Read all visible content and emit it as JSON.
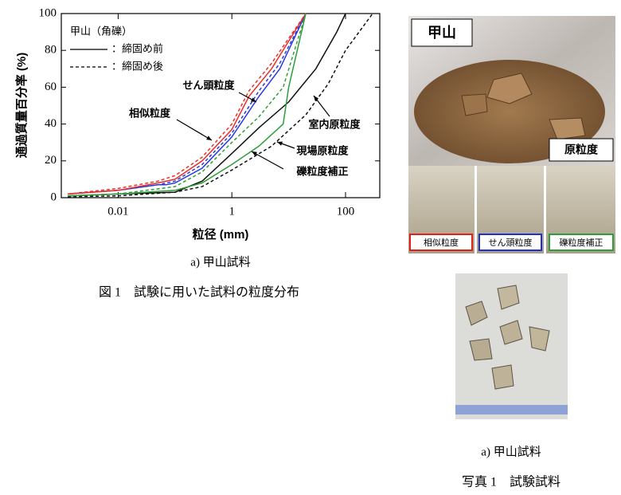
{
  "chart_data": {
    "type": "line",
    "xlabel": "粒径 (mm)",
    "ylabel": "通過質量百分率 (%)",
    "xscale": "log",
    "xlim": [
      0.001,
      400
    ],
    "xticks": [
      0.01,
      1,
      100
    ],
    "ylim": [
      0,
      100
    ],
    "yticks": [
      0,
      20,
      40,
      60,
      80,
      100
    ],
    "legend": {
      "title": "甲山（角礫）",
      "items": [
        {
          "style": "solid",
          "label": "：締固め前"
        },
        {
          "style": "dashed",
          "label": "：締固め後"
        }
      ]
    },
    "series": [
      {
        "name": "せん頭粒度",
        "color": "#2a3adf",
        "style": "solid",
        "x": [
          0.0013,
          0.01,
          0.05,
          0.07,
          0.1,
          0.3,
          1,
          3,
          7,
          20
        ],
        "values": [
          2,
          4,
          7,
          7,
          8,
          16,
          33,
          55,
          70,
          100
        ]
      },
      {
        "color": "#2a3adf",
        "style": "dashed",
        "x": [
          0.0013,
          0.01,
          0.05,
          0.1,
          0.3,
          1,
          3,
          7,
          20
        ],
        "values": [
          2,
          4,
          7,
          9,
          18,
          35,
          58,
          73,
          100
        ]
      },
      {
        "name": "相似粒度",
        "color": "#e8312a",
        "style": "solid",
        "x": [
          0.0013,
          0.01,
          0.05,
          0.1,
          0.3,
          1,
          2,
          5,
          20
        ],
        "values": [
          2,
          4,
          8,
          10,
          20,
          37,
          55,
          70,
          100
        ]
      },
      {
        "color": "#e8312a",
        "style": "dashed",
        "x": [
          0.0013,
          0.01,
          0.05,
          0.1,
          0.3,
          1,
          2,
          5,
          20
        ],
        "values": [
          2,
          5,
          9,
          12,
          22,
          40,
          58,
          73,
          100
        ]
      },
      {
        "name": "室内原粒度",
        "color": "#111111",
        "style": "solid",
        "x": [
          0.0013,
          0.01,
          0.1,
          0.3,
          1,
          3,
          10,
          30,
          70,
          100
        ],
        "values": [
          1,
          2,
          3,
          9,
          24,
          38,
          52,
          70,
          90,
          100
        ]
      },
      {
        "name": "現場原粒度",
        "color": "#111111",
        "style": "dashed",
        "x": [
          0.0013,
          0.01,
          0.1,
          0.3,
          1,
          5,
          20,
          50,
          100,
          300
        ],
        "values": [
          0.5,
          1,
          3,
          6,
          15,
          28,
          45,
          62,
          80,
          100
        ]
      },
      {
        "name": "礫粒度補正",
        "color": "#2e9e3a",
        "style": "solid",
        "x": [
          0.0013,
          0.01,
          0.1,
          0.3,
          1,
          3,
          8,
          10,
          20
        ],
        "values": [
          1,
          2,
          4,
          8,
          18,
          28,
          40,
          60,
          100
        ]
      },
      {
        "color": "#2e9e3a",
        "style": "dashed",
        "x": [
          0.0013,
          0.01,
          0.1,
          0.3,
          1,
          3,
          8,
          20
        ],
        "values": [
          1,
          2,
          6,
          14,
          30,
          44,
          60,
          100
        ]
      }
    ]
  },
  "figure": {
    "sub_caption": "a) 甲山試料",
    "caption": "図 1　試験に用いた試料の粒度分布"
  },
  "photo": {
    "label": "甲山",
    "tag": "原粒度",
    "samples": [
      "相似粒度",
      "せん頭粒度",
      "礫粒度補正"
    ],
    "sub_caption": "a) 甲山試料",
    "caption": "写真 1　試験試料"
  }
}
